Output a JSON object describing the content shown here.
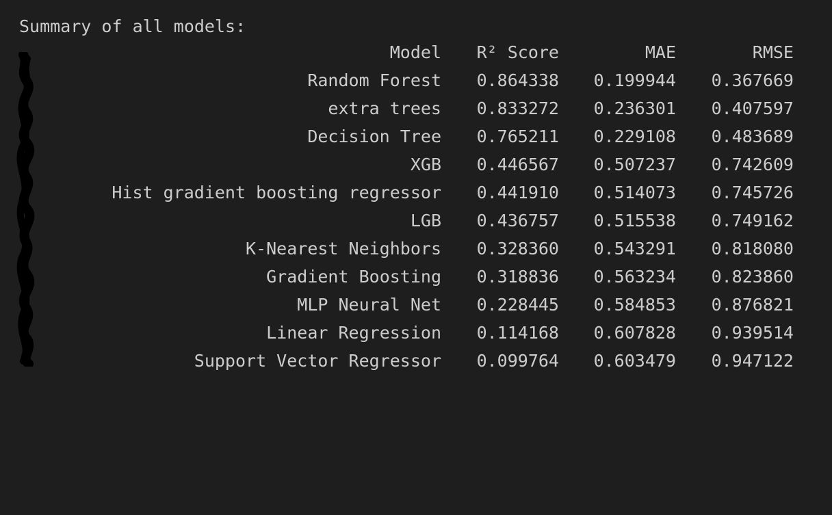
{
  "output": {
    "title": "Summary of all models:",
    "columns": [
      "Model",
      "R² Score",
      "MAE",
      "RMSE"
    ],
    "rows": [
      [
        "Random Forest",
        "0.864338",
        "0.199944",
        "0.367669"
      ],
      [
        "extra trees",
        "0.833272",
        "0.236301",
        "0.407597"
      ],
      [
        "Decision Tree",
        "0.765211",
        "0.229108",
        "0.483689"
      ],
      [
        "XGB",
        "0.446567",
        "0.507237",
        "0.742609"
      ],
      [
        "Hist gradient boosting regressor",
        "0.441910",
        "0.514073",
        "0.745726"
      ],
      [
        "LGB",
        "0.436757",
        "0.515538",
        "0.749162"
      ],
      [
        "K-Nearest Neighbors",
        "0.328360",
        "0.543291",
        "0.818080"
      ],
      [
        "Gradient Boosting",
        "0.318836",
        "0.563234",
        "0.823860"
      ],
      [
        "MLP Neural Net",
        "0.228445",
        "0.584853",
        "0.876821"
      ],
      [
        "Linear Regression",
        "0.114168",
        "0.607828",
        "0.939514"
      ],
      [
        "Support Vector Regressor",
        "0.099764",
        "0.603479",
        "0.947122"
      ]
    ]
  },
  "colors": {
    "background": "#1e1e1e",
    "text": "#cccccc",
    "redaction": "#000000"
  }
}
